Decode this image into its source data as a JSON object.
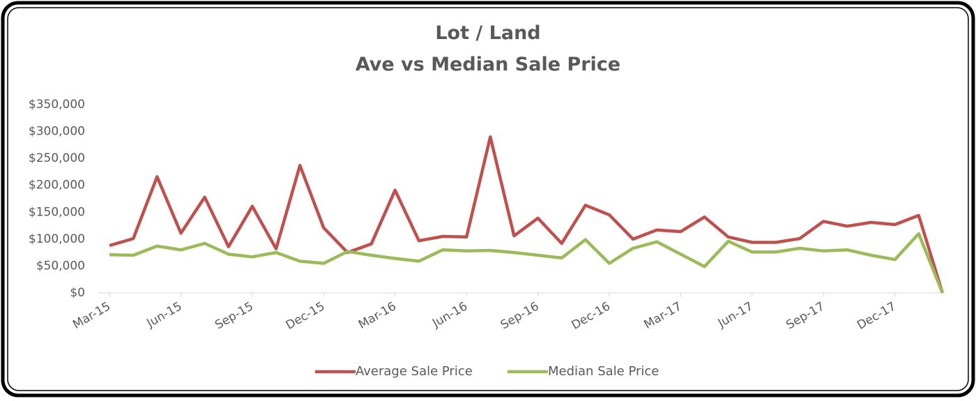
{
  "chart_data": {
    "type": "line",
    "title": [
      "Lot / Land",
      "Ave vs Median Sale Price"
    ],
    "categories": [
      "Mar-15",
      null,
      null,
      "Jun-15",
      null,
      null,
      "Sep-15",
      null,
      null,
      "Dec-15",
      null,
      null,
      "Mar-16",
      null,
      null,
      "Jun-16",
      null,
      null,
      "Sep-16",
      null,
      null,
      "Dec-16",
      null,
      null,
      "Mar-17",
      null,
      null,
      "Jun-17",
      null,
      null,
      "Sep-17",
      null,
      null,
      "Dec-17",
      null,
      null
    ],
    "series": [
      {
        "name": "Average Sale Price",
        "color": "#c0504d",
        "values": [
          88000,
          101000,
          216000,
          111000,
          178000,
          86000,
          161000,
          82000,
          237000,
          121000,
          75000,
          91000,
          191000,
          97000,
          105000,
          104000,
          290000,
          106000,
          139000,
          92000,
          163000,
          145000,
          100000,
          117000,
          114000,
          141000,
          104000,
          94000,
          94000,
          101000,
          133000,
          124000,
          131000,
          127000,
          144000,
          0
        ]
      },
      {
        "name": "Median Sale Price",
        "color": "#9bbb59",
        "values": [
          71000,
          70000,
          87000,
          80000,
          92000,
          72000,
          67000,
          75000,
          59000,
          55000,
          77000,
          70000,
          64000,
          59000,
          80000,
          78000,
          79000,
          75000,
          70000,
          65000,
          99000,
          55000,
          83000,
          95000,
          72000,
          49000,
          96000,
          76000,
          76000,
          83000,
          78000,
          80000,
          70000,
          62000,
          110000,
          0
        ]
      }
    ],
    "ylim": [
      0,
      350000
    ],
    "yticks": [
      {
        "value": 0,
        "label": "$0"
      },
      {
        "value": 50000,
        "label": "$50,000"
      },
      {
        "value": 100000,
        "label": "$100,000"
      },
      {
        "value": 150000,
        "label": "$150,000"
      },
      {
        "value": 200000,
        "label": "$200,000"
      },
      {
        "value": 250000,
        "label": "$250,000"
      },
      {
        "value": 300000,
        "label": "$300,000"
      },
      {
        "value": 350000,
        "label": "$350,000"
      }
    ],
    "grid": false,
    "legend": "bottom"
  }
}
